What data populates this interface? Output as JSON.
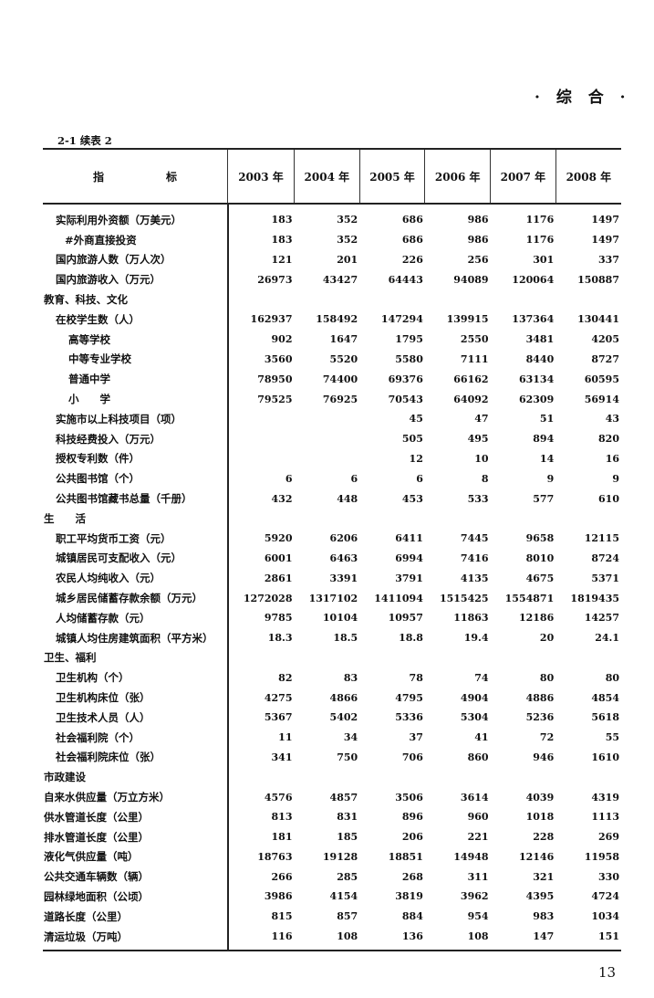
{
  "page": {
    "section_mark": "· 综  合 ·",
    "table_caption": "2-1  续表 2",
    "page_number": "13"
  },
  "table": {
    "header_label": "指标",
    "years": [
      "2003 年",
      "2004 年",
      "2005 年",
      "2006 年",
      "2007 年",
      "2008 年"
    ],
    "rows": [
      {
        "label": "实际利用外资额（万美元）",
        "indent": 1,
        "values": [
          "183",
          "352",
          "686",
          "986",
          "1176",
          "1497"
        ]
      },
      {
        "label": "#外商直接投资",
        "indent": 3,
        "values": [
          "183",
          "352",
          "686",
          "986",
          "1176",
          "1497"
        ]
      },
      {
        "label": "国内旅游人数（万人次）",
        "indent": 1,
        "values": [
          "121",
          "201",
          "226",
          "256",
          "301",
          "337"
        ]
      },
      {
        "label": "国内旅游收入（万元）",
        "indent": 1,
        "values": [
          "26973",
          "43427",
          "64443",
          "94089",
          "120064",
          "150887"
        ]
      },
      {
        "label": "教育、科技、文化",
        "indent": 0,
        "values": [
          "",
          "",
          "",
          "",
          "",
          ""
        ]
      },
      {
        "label": "在校学生数（人）",
        "indent": 1,
        "values": [
          "162937",
          "158492",
          "147294",
          "139915",
          "137364",
          "130441"
        ]
      },
      {
        "label": "高等学校",
        "indent": 2,
        "values": [
          "902",
          "1647",
          "1795",
          "2550",
          "3481",
          "4205"
        ]
      },
      {
        "label": "中等专业学校",
        "indent": 2,
        "values": [
          "3560",
          "5520",
          "5580",
          "7111",
          "8440",
          "8727"
        ]
      },
      {
        "label": "普通中学",
        "indent": 2,
        "values": [
          "78950",
          "74400",
          "69376",
          "66162",
          "63134",
          "60595"
        ]
      },
      {
        "label": "小　　学",
        "indent": 2,
        "values": [
          "79525",
          "76925",
          "70543",
          "64092",
          "62309",
          "56914"
        ]
      },
      {
        "label": "实施市以上科技项目（项）",
        "indent": 1,
        "values": [
          "",
          "",
          "45",
          "47",
          "51",
          "43"
        ]
      },
      {
        "label": "科技经费投入（万元）",
        "indent": 1,
        "values": [
          "",
          "",
          "505",
          "495",
          "894",
          "820"
        ]
      },
      {
        "label": "授权专利数（件）",
        "indent": 1,
        "values": [
          "",
          "",
          "12",
          "10",
          "14",
          "16"
        ]
      },
      {
        "label": "公共图书馆（个）",
        "indent": 1,
        "values": [
          "6",
          "6",
          "6",
          "8",
          "9",
          "9"
        ]
      },
      {
        "label": "公共图书馆藏书总量（千册）",
        "indent": 1,
        "values": [
          "432",
          "448",
          "453",
          "533",
          "577",
          "610"
        ]
      },
      {
        "label": "生　　活",
        "indent": 0,
        "values": [
          "",
          "",
          "",
          "",
          "",
          ""
        ]
      },
      {
        "label": "职工平均货币工资（元）",
        "indent": 1,
        "values": [
          "5920",
          "6206",
          "6411",
          "7445",
          "9658",
          "12115"
        ]
      },
      {
        "label": "城镇居民可支配收入（元）",
        "indent": 1,
        "values": [
          "6001",
          "6463",
          "6994",
          "7416",
          "8010",
          "8724"
        ]
      },
      {
        "label": "农民人均纯收入（元）",
        "indent": 1,
        "values": [
          "2861",
          "3391",
          "3791",
          "4135",
          "4675",
          "5371"
        ]
      },
      {
        "label": "城乡居民储蓄存款余额（万元）",
        "indent": 1,
        "values": [
          "1272028",
          "1317102",
          "1411094",
          "1515425",
          "1554871",
          "1819435"
        ]
      },
      {
        "label": "人均储蓄存款（元）",
        "indent": 1,
        "values": [
          "9785",
          "10104",
          "10957",
          "11863",
          "12186",
          "14257"
        ]
      },
      {
        "label": "城镇人均住房建筑面积（平方米）",
        "indent": 1,
        "values": [
          "18.3",
          "18.5",
          "18.8",
          "19.4",
          "20",
          "24.1"
        ]
      },
      {
        "label": "卫生、福利",
        "indent": 0,
        "values": [
          "",
          "",
          "",
          "",
          "",
          ""
        ]
      },
      {
        "label": "卫生机构（个）",
        "indent": 1,
        "values": [
          "82",
          "83",
          "78",
          "74",
          "80",
          "80"
        ]
      },
      {
        "label": "卫生机构床位（张）",
        "indent": 1,
        "values": [
          "4275",
          "4866",
          "4795",
          "4904",
          "4886",
          "4854"
        ]
      },
      {
        "label": "卫生技术人员（人）",
        "indent": 1,
        "values": [
          "5367",
          "5402",
          "5336",
          "5304",
          "5236",
          "5618"
        ]
      },
      {
        "label": "社会福利院（个）",
        "indent": 1,
        "values": [
          "11",
          "34",
          "37",
          "41",
          "72",
          "55"
        ]
      },
      {
        "label": "社会福利院床位（张）",
        "indent": 1,
        "values": [
          "341",
          "750",
          "706",
          "860",
          "946",
          "1610"
        ]
      },
      {
        "label": "市政建设",
        "indent": 0,
        "values": [
          "",
          "",
          "",
          "",
          "",
          ""
        ]
      },
      {
        "label": "自来水供应量（万立方米）",
        "indent": 0,
        "values": [
          "4576",
          "4857",
          "3506",
          "3614",
          "4039",
          "4319"
        ]
      },
      {
        "label": "供水管道长度（公里）",
        "indent": 0,
        "values": [
          "813",
          "831",
          "896",
          "960",
          "1018",
          "1113"
        ]
      },
      {
        "label": "排水管道长度（公里）",
        "indent": 0,
        "values": [
          "181",
          "185",
          "206",
          "221",
          "228",
          "269"
        ]
      },
      {
        "label": "液化气供应量（吨）",
        "indent": 0,
        "values": [
          "18763",
          "19128",
          "18851",
          "14948",
          "12146",
          "11958"
        ]
      },
      {
        "label": "公共交通车辆数（辆）",
        "indent": 0,
        "values": [
          "266",
          "285",
          "268",
          "311",
          "321",
          "330"
        ]
      },
      {
        "label": "园林绿地面积（公顷）",
        "indent": 0,
        "values": [
          "3986",
          "4154",
          "3819",
          "3962",
          "4395",
          "4724"
        ]
      },
      {
        "label": "道路长度（公里）",
        "indent": 0,
        "values": [
          "815",
          "857",
          "884",
          "954",
          "983",
          "1034"
        ]
      },
      {
        "label": "清运垃圾（万吨）",
        "indent": 0,
        "values": [
          "116",
          "108",
          "136",
          "108",
          "147",
          "151"
        ]
      }
    ]
  }
}
